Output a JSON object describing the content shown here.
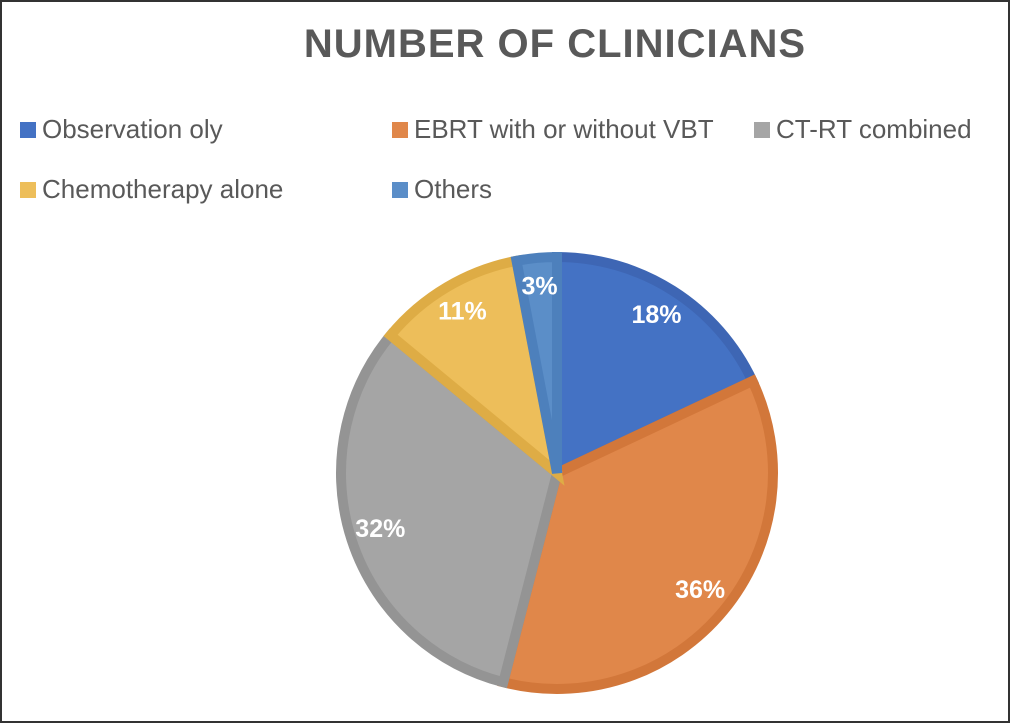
{
  "chart_data": {
    "type": "pie",
    "title": "NUMBER OF CLINICIANS",
    "legend_position": "top",
    "slices": [
      {
        "label": "Observation oly",
        "value": 18,
        "display": "18%",
        "color": "#4472C4",
        "border": "#3E66B4"
      },
      {
        "label": "EBRT with or without VBT",
        "value": 36,
        "display": "36%",
        "color": "#E0874A",
        "border": "#D2773A"
      },
      {
        "label": "CT-RT combined",
        "value": 32,
        "display": "32%",
        "color": "#A5A5A5",
        "border": "#949494"
      },
      {
        "label": "Chemotherapy alone",
        "value": 11,
        "display": "11%",
        "color": "#EDBE5A",
        "border": "#DEAC45"
      },
      {
        "label": "Others",
        "value": 3,
        "display": "3%",
        "color": "#5B8EC8",
        "border": "#4D80BC"
      }
    ]
  }
}
